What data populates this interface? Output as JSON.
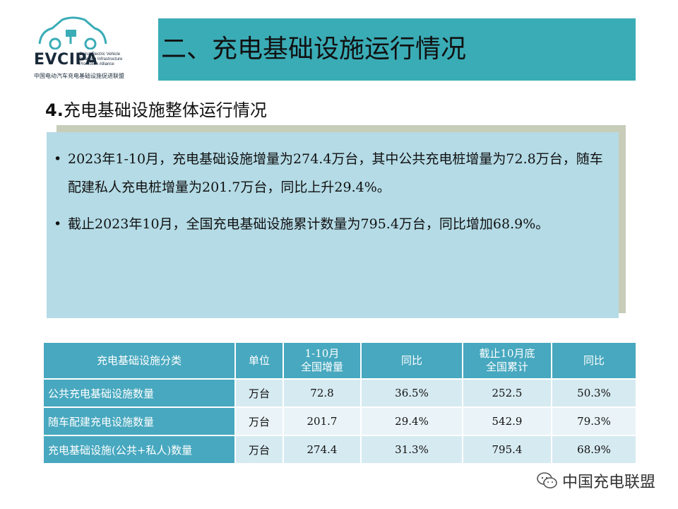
{
  "header": {
    "logo": {
      "name": "EVCIPA",
      "sub_lines": [
        "China Electric Vehicle",
        "Charging Infrastructure",
        "Promotion Alliance"
      ],
      "cn_name": "中国电动汽车充电基础设施促进联盟",
      "accent_color": "#3aacb6"
    },
    "title": "二、充电基础设施运行情况",
    "title_bg": "#3aacb6"
  },
  "section": {
    "number": "4.",
    "title": "充电基础设施整体运行情况"
  },
  "summary": {
    "bullet_symbol": "•",
    "items": [
      "2023年1-10月，充电基础设施增量为274.4万台，其中公共充电桩增量为72.8万台，随车配建私人充电桩增量为201.7万台，同比上升29.4%。",
      "截止2023年10月，全国充电基础设施累计数量为795.4万台，同比增加68.9%。"
    ]
  },
  "table": {
    "headers": {
      "category": "充电基础设施分类",
      "unit": "单位",
      "increment_l1": "1-10月",
      "increment_l2": "全国增量",
      "yoy1": "同比",
      "cumulative_l1": "截止10月底",
      "cumulative_l2": "全国累计",
      "yoy2": "同比"
    },
    "rows": [
      {
        "category": "公共充电基础设施数量",
        "unit": "万台",
        "increment": "72.8",
        "yoy1": "36.5%",
        "cumulative": "252.5",
        "yoy2": "50.3%"
      },
      {
        "category": "随车配建充电设施数量",
        "unit": "万台",
        "increment": "201.7",
        "yoy1": "29.4%",
        "cumulative": "542.9",
        "yoy2": "79.3%"
      },
      {
        "category": "充电基础设施(公共+私人)数量",
        "unit": "万台",
        "increment": "274.4",
        "yoy1": "31.3%",
        "cumulative": "795.4",
        "yoy2": "68.9%"
      }
    ]
  },
  "footer": {
    "watermark_icon": "wechat-icon",
    "watermark_text": "中国充电联盟"
  }
}
